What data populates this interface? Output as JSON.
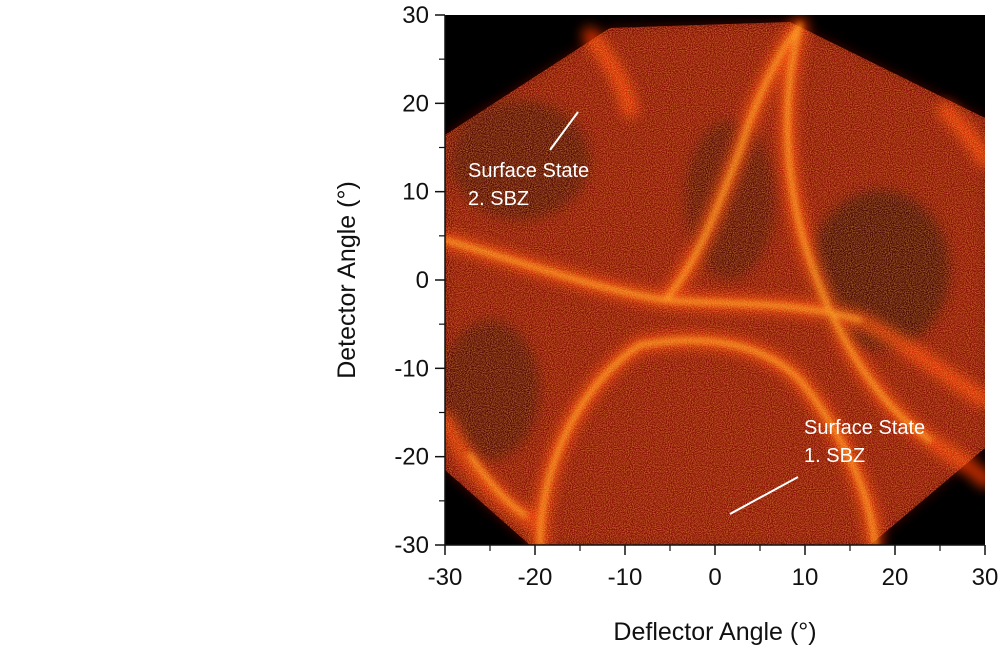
{
  "chart_data": {
    "type": "heatmap",
    "title": "",
    "xlabel": "Deflector Angle (°)",
    "ylabel": "Detector Angle (°)",
    "xlim": [
      -30,
      30
    ],
    "ylim": [
      -30,
      30
    ],
    "x_ticks": [
      -30,
      -20,
      -10,
      0,
      10,
      20,
      30
    ],
    "y_ticks": [
      -30,
      -20,
      -10,
      0,
      10,
      20,
      30
    ],
    "x_tick_labels": [
      "-30",
      "-20",
      "-10",
      "0",
      "10",
      "20",
      "30"
    ],
    "y_tick_labels": [
      "-30",
      "-20",
      "-10",
      "0",
      "10",
      "20",
      "30"
    ],
    "colormap": [
      "#000000",
      "#5a0000",
      "#b80a00",
      "#ff3a00",
      "#ff9a10",
      "#ffe060"
    ],
    "grid": false,
    "annotations": [
      {
        "line1": "Surface State",
        "line2": "2. SBZ",
        "points_to": {
          "x": -15,
          "y": 19
        }
      },
      {
        "line1": "Surface State",
        "line2": "1. SBZ",
        "points_to": {
          "x": 2,
          "y": -26
        }
      }
    ]
  }
}
